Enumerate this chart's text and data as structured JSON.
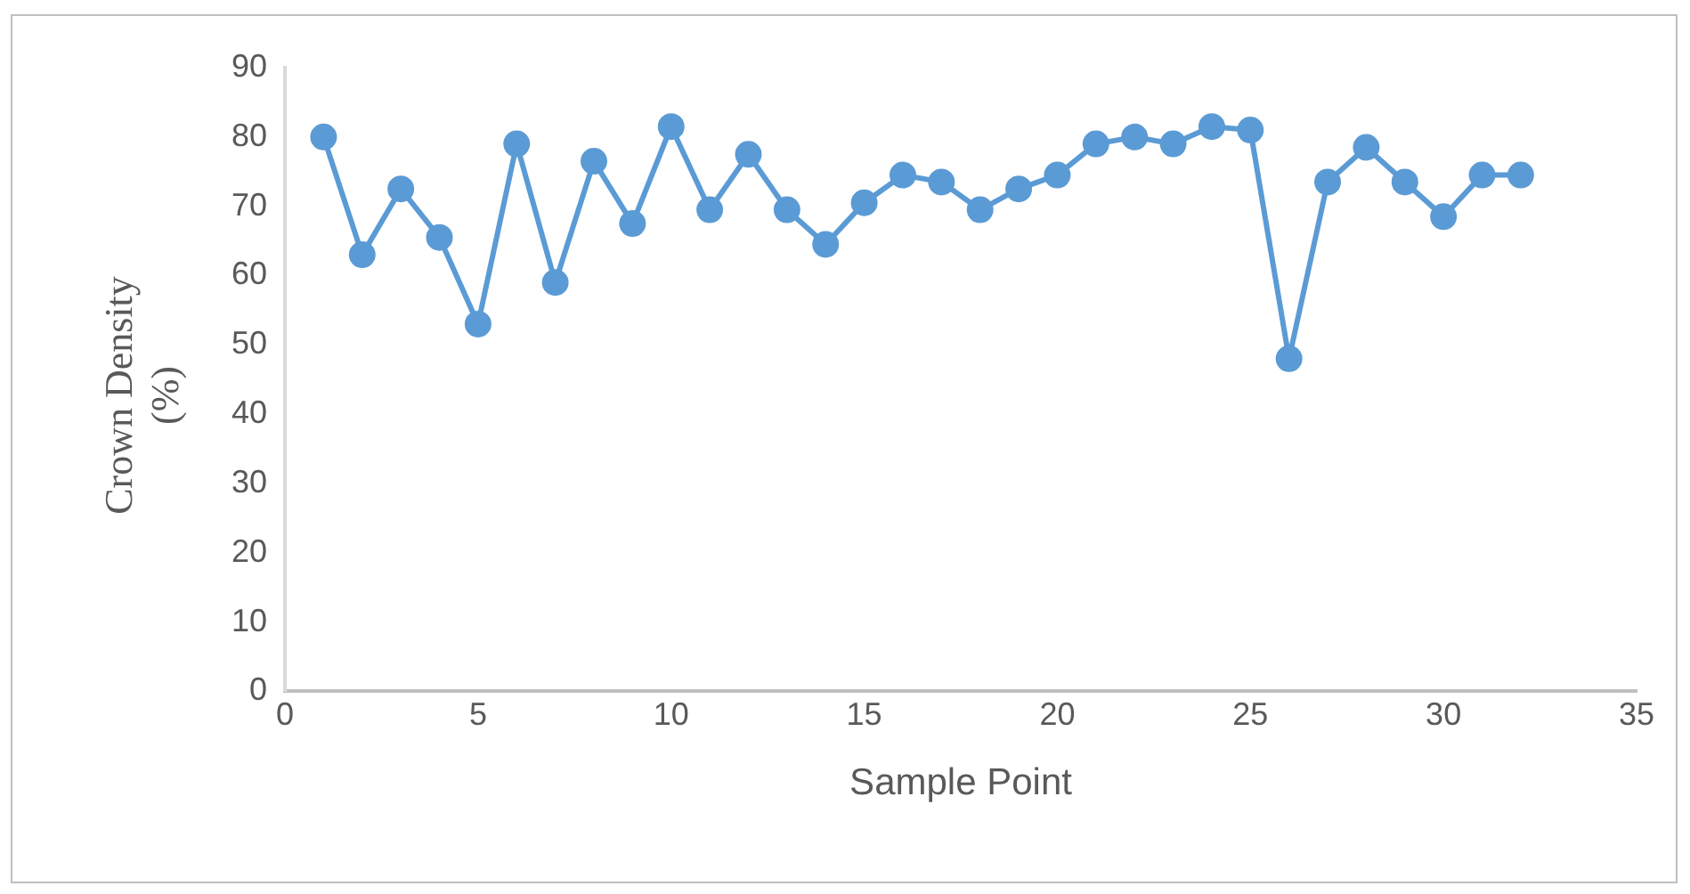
{
  "chart_data": {
    "type": "line",
    "xlabel": "Sample Point",
    "ylabel": "Crown Density (%)",
    "x": [
      1,
      2,
      3,
      4,
      5,
      6,
      7,
      8,
      9,
      10,
      11,
      12,
      13,
      14,
      15,
      16,
      17,
      18,
      19,
      20,
      21,
      22,
      23,
      24,
      25,
      26,
      27,
      28,
      29,
      30,
      31,
      32
    ],
    "series": [
      {
        "color": "#5b9bd5",
        "values": [
          80,
          63,
          72.5,
          65.5,
          53,
          79,
          59,
          76.5,
          67.5,
          81.5,
          69.5,
          77.5,
          69.5,
          64.5,
          70.5,
          74.5,
          73.5,
          69.5,
          72.5,
          74.5,
          79,
          80,
          79,
          81.5,
          81,
          48,
          73.5,
          78.5,
          73.5,
          68.5,
          74.5,
          74.5
        ]
      }
    ],
    "xlim": [
      0,
      35
    ],
    "xticks": [
      0,
      5,
      10,
      15,
      20,
      25,
      30,
      35
    ],
    "ylim": [
      0,
      90
    ],
    "yticks": [
      0,
      10,
      20,
      30,
      40,
      50,
      60,
      70,
      80,
      90
    ],
    "grid": false,
    "legend": false,
    "marker": "circle",
    "line_style": "solid"
  }
}
